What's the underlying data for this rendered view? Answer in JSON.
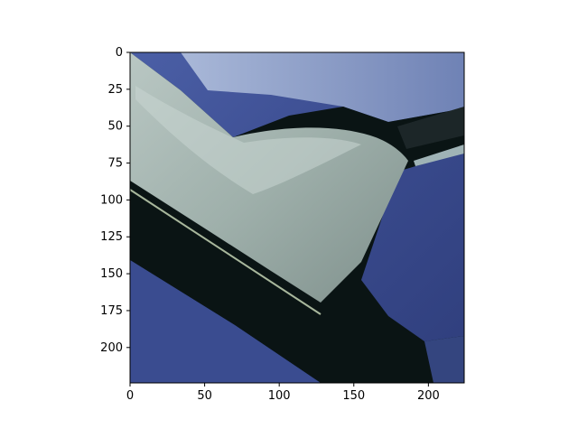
{
  "chart_data": {
    "type": "image",
    "x_ticks": [
      0,
      50,
      100,
      150,
      200
    ],
    "y_ticks": [
      0,
      25,
      50,
      75,
      100,
      125,
      150,
      175,
      200
    ],
    "xlim": [
      0,
      224
    ],
    "ylim": [
      224,
      0
    ],
    "image_size": [
      224,
      224
    ],
    "image_subject": "tape-dispenser-photo"
  },
  "colors": {
    "background_blue": "#3d4f93",
    "dispenser_black": "#0a1414",
    "dispenser_gray": "#a9b9b4",
    "highlight": "#cfd9d4",
    "axis": "#000000"
  }
}
